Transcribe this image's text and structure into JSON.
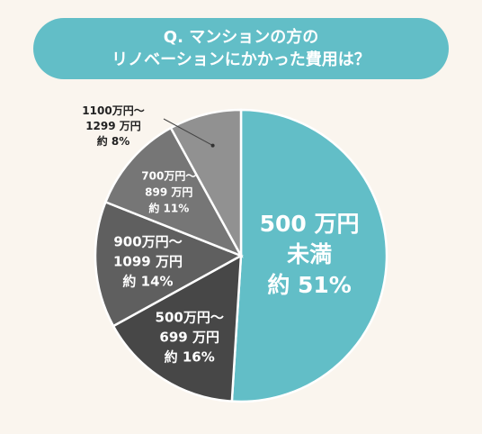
{
  "title": {
    "line1": "Q. マンションの方の",
    "line2": "リノベーションにかかった費用は？"
  },
  "chart_data": {
    "type": "pie",
    "title": "Q. マンションの方のリノベーションにかかった費用は？",
    "unit": "%",
    "start": "12 o'clock",
    "direction": "clockwise",
    "slices": [
      {
        "lines": [
          "500 万円",
          "未満"
        ],
        "prefix": "約",
        "value": 51,
        "pct": "51%",
        "color": "#62bec7"
      },
      {
        "lines": [
          "500万円〜",
          "699 万円"
        ],
        "prefix": "約",
        "value": 16,
        "pct": "16%",
        "color": "#474747"
      },
      {
        "lines": [
          "900万円〜",
          "1099 万円"
        ],
        "prefix": "約",
        "value": 14,
        "pct": "14%",
        "color": "#5f5f5f"
      },
      {
        "lines": [
          "700万円〜",
          "899 万円"
        ],
        "prefix": "約",
        "value": 11,
        "pct": "11%",
        "color": "#767676"
      },
      {
        "lines": [
          "1100万円〜",
          "1299 万円"
        ],
        "prefix": "約",
        "value": 8,
        "pct": "8%",
        "color": "#919191"
      }
    ]
  }
}
